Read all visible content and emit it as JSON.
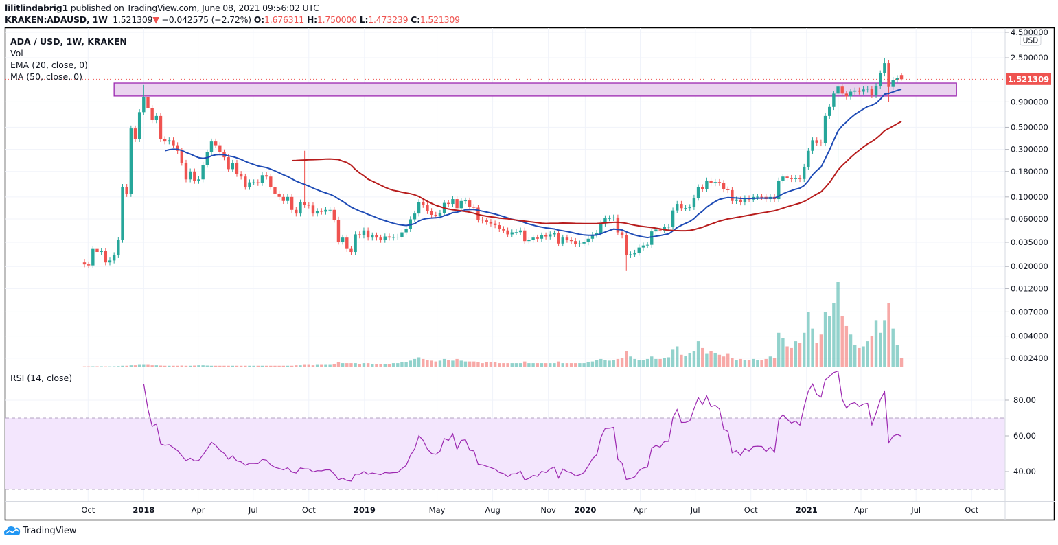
{
  "header": {
    "publisher": "lilitlindabrig1",
    "published_text": "published on TradingView.com, June 08, 2021 09:56:02 UTC",
    "symbol": "KRAKEN:ADAUSD, 1W",
    "last_price": "1.521309",
    "change": "−0.042575 (−2.72%)",
    "o_label": "O:",
    "o": "1.676311",
    "h_label": "H:",
    "h": "1.750000",
    "l_label": "L:",
    "l": "1.473239",
    "c_label": "C:",
    "c": "1.521309",
    "direction_icon": "triangle-down-icon"
  },
  "legend": {
    "title": "ADA / USD, 1W, KRAKEN",
    "vol": "Vol",
    "ema": "EMA (20, close, 0)",
    "ma": "MA (50, close, 0)"
  },
  "rsi_title": "RSI (14, close)",
  "price_axis": {
    "currency": "USD",
    "ticks": [
      "4.500000",
      "2.500000",
      "0.900000",
      "0.500000",
      "0.300000",
      "0.180000",
      "0.100000",
      "0.060000",
      "0.035000",
      "0.020000",
      "0.012000",
      "0.007000",
      "0.004000",
      "0.002400"
    ],
    "current_label": "1.521309",
    "scale": "log"
  },
  "rsi_axis": {
    "ticks": [
      "80.00",
      "60.00",
      "40.00"
    ],
    "upper_band": 70,
    "lower_band": 30
  },
  "time_axis": [
    {
      "label": "Oct",
      "date": "2017-10-01"
    },
    {
      "label": "2018",
      "date": "2018-01-01"
    },
    {
      "label": "Apr",
      "date": "2018-04-01"
    },
    {
      "label": "Jul",
      "date": "2018-07-01"
    },
    {
      "label": "Oct",
      "date": "2018-10-01"
    },
    {
      "label": "2019",
      "date": "2019-01-01"
    },
    {
      "label": "May",
      "date": "2019-05-01"
    },
    {
      "label": "Aug",
      "date": "2019-08-01"
    },
    {
      "label": "Nov",
      "date": "2019-11-01"
    },
    {
      "label": "2020",
      "date": "2020-01-01"
    },
    {
      "label": "Apr",
      "date": "2020-04-01"
    },
    {
      "label": "Jul",
      "date": "2020-07-01"
    },
    {
      "label": "Oct",
      "date": "2020-10-01"
    },
    {
      "label": "2021",
      "date": "2021-01-01"
    },
    {
      "label": "Apr",
      "date": "2021-04-01"
    },
    {
      "label": "Jul",
      "date": "2021-07-01"
    },
    {
      "label": "Oct",
      "date": "2021-10-01"
    }
  ],
  "colors": {
    "up": "#26a69a",
    "down": "#ef5350",
    "ema": "#1e4bb5",
    "ma": "#b71c1c",
    "rsi": "#9c27b0",
    "zone_fill": "#ead4ef",
    "zone_border": "#9c27b0",
    "rsi_band": "#f3e6fd"
  },
  "chart_data": {
    "type": "candlestick",
    "symbol": "ADA / USD",
    "interval": "1W",
    "first_week": "2017-09-25",
    "first_open": 0.022,
    "closes": [
      0.021,
      0.0205,
      0.03,
      0.028,
      0.0285,
      0.022,
      0.023,
      0.026,
      0.037,
      0.126,
      0.107,
      0.487,
      0.38,
      0.71,
      1.0,
      0.78,
      0.59,
      0.65,
      0.38,
      0.36,
      0.37,
      0.33,
      0.29,
      0.22,
      0.15,
      0.18,
      0.145,
      0.15,
      0.21,
      0.28,
      0.36,
      0.33,
      0.28,
      0.25,
      0.19,
      0.22,
      0.17,
      0.16,
      0.126,
      0.14,
      0.14,
      0.138,
      0.165,
      0.16,
      0.126,
      0.108,
      0.1,
      0.091,
      0.1,
      0.074,
      0.068,
      0.088,
      0.083,
      0.082,
      0.068,
      0.072,
      0.071,
      0.074,
      0.074,
      0.059,
      0.0355,
      0.039,
      0.03,
      0.028,
      0.042,
      0.041,
      0.046,
      0.039,
      0.041,
      0.039,
      0.037,
      0.04,
      0.039,
      0.0395,
      0.0397,
      0.044,
      0.0475,
      0.0595,
      0.068,
      0.0885,
      0.083,
      0.072,
      0.066,
      0.065,
      0.069,
      0.087,
      0.085,
      0.095,
      0.077,
      0.091,
      0.092,
      0.079,
      0.078,
      0.059,
      0.058,
      0.056,
      0.054,
      0.052,
      0.0475,
      0.046,
      0.042,
      0.044,
      0.0442,
      0.046,
      0.036,
      0.037,
      0.039,
      0.038,
      0.041,
      0.04,
      0.042,
      0.043,
      0.034,
      0.039,
      0.037,
      0.036,
      0.0335,
      0.034,
      0.035,
      0.038,
      0.0415,
      0.0435,
      0.054,
      0.061,
      0.0612,
      0.062,
      0.044,
      0.041,
      0.026,
      0.0265,
      0.0275,
      0.031,
      0.0325,
      0.033,
      0.045,
      0.047,
      0.046,
      0.05,
      0.0502,
      0.073,
      0.085,
      0.077,
      0.0772,
      0.079,
      0.098,
      0.125,
      0.12,
      0.146,
      0.137,
      0.141,
      0.138,
      0.119,
      0.117,
      0.091,
      0.094,
      0.088,
      0.097,
      0.094,
      0.1,
      0.1005,
      0.1002,
      0.095,
      0.1,
      0.095,
      0.146,
      0.16,
      0.155,
      0.151,
      0.155,
      0.151,
      0.2,
      0.29,
      0.37,
      0.35,
      0.345,
      0.65,
      0.8,
      1.09,
      1.28,
      1.09,
      1.02,
      1.14,
      1.17,
      1.14,
      1.2,
      1.22,
      1.05,
      1.3,
      1.74,
      2.2,
      1.27,
      1.5,
      1.563884,
      1.521309
    ],
    "last_candle": {
      "open": 1.676311,
      "high": 1.75,
      "low": 1.473239,
      "close": 1.521309
    },
    "notable_wicks": [
      {
        "week": "2018-01-01",
        "high": 1.33
      },
      {
        "week": "2018-09-24",
        "high": 0.29
      },
      {
        "week": "2020-03-09",
        "low": 0.018
      },
      {
        "week": "2021-02-22",
        "low": 0.15
      },
      {
        "week": "2021-05-10",
        "high": 2.47
      },
      {
        "week": "2021-05-17",
        "low": 0.9
      }
    ],
    "volume_relative": [
      0.3,
      0.3,
      0.4,
      0.4,
      0.4,
      0.3,
      0.3,
      0.4,
      0.6,
      1,
      1,
      1.5,
      1.5,
      2,
      2,
      2,
      1.5,
      1.5,
      1.2,
      1,
      1,
      1,
      1,
      1.2,
      1,
      1,
      1.2,
      1.5,
      1.5,
      1.2,
      1,
      1,
      1,
      1,
      1,
      1,
      1,
      1,
      1,
      1,
      1,
      1,
      1,
      1,
      1,
      1,
      1,
      1,
      1,
      1,
      1.5,
      1.5,
      2,
      2,
      1.5,
      2,
      2,
      2,
      2,
      3,
      5,
      4,
      4,
      4,
      4,
      3,
      4,
      4,
      3,
      3,
      3,
      3,
      3,
      4,
      4,
      5,
      5,
      7,
      9,
      11,
      9,
      8,
      7,
      6,
      7,
      9,
      8,
      7,
      9,
      7,
      6,
      6,
      6,
      5,
      4,
      5,
      5,
      5,
      4,
      4,
      4,
      4,
      4,
      4,
      6,
      4,
      4,
      4,
      4,
      4,
      4,
      4,
      6,
      4,
      4,
      4,
      4,
      4,
      4,
      5,
      6,
      8,
      9,
      8,
      7,
      8,
      9,
      10,
      18,
      12,
      9,
      8,
      8,
      9,
      12,
      9,
      9,
      10,
      11,
      20,
      24,
      14,
      13,
      16,
      18,
      30,
      22,
      15,
      18,
      16,
      14,
      12,
      15,
      10,
      8,
      9,
      8,
      8,
      9,
      8,
      8,
      9,
      12,
      10,
      40,
      34,
      24,
      22,
      30,
      28,
      40,
      65,
      45,
      28,
      38,
      65,
      60,
      75,
      100,
      60,
      48,
      38,
      26,
      22,
      24,
      30,
      36,
      55,
      40,
      55,
      75,
      45,
      26,
      10
    ],
    "indicators": [
      "EMA 20 close",
      "MA 50 close",
      "RSI 14 close",
      "Volume"
    ],
    "zone": {
      "from": "2017-11-13",
      "to": "2021-09-06",
      "price_low": 1.03,
      "price_high": 1.39
    }
  },
  "footer": {
    "brand": "TradingView"
  }
}
